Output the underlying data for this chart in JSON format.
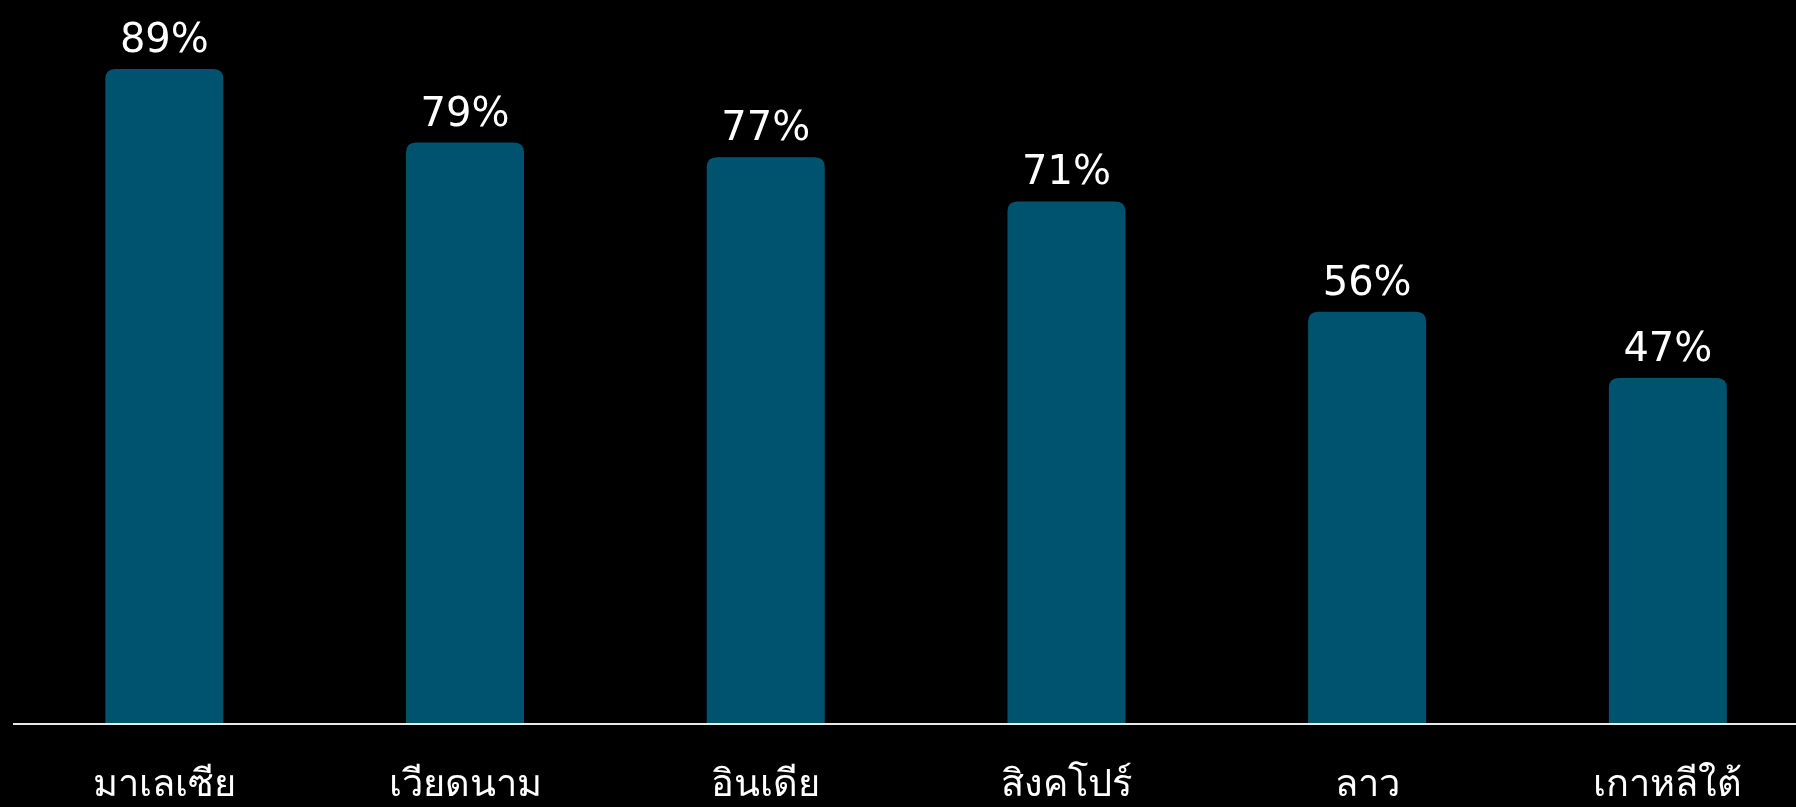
{
  "chart_data": {
    "type": "bar",
    "categories": [
      "มาเลเซีย",
      "เวียดนาม",
      "อินเดีย",
      "สิงคโปร์",
      "ลาว",
      "เกาหลีใต้"
    ],
    "values": [
      89,
      79,
      77,
      71,
      56,
      47
    ],
    "value_labels": [
      "89%",
      "79%",
      "77%",
      "71%",
      "56%",
      "47%"
    ],
    "color": "#00536f"
  }
}
